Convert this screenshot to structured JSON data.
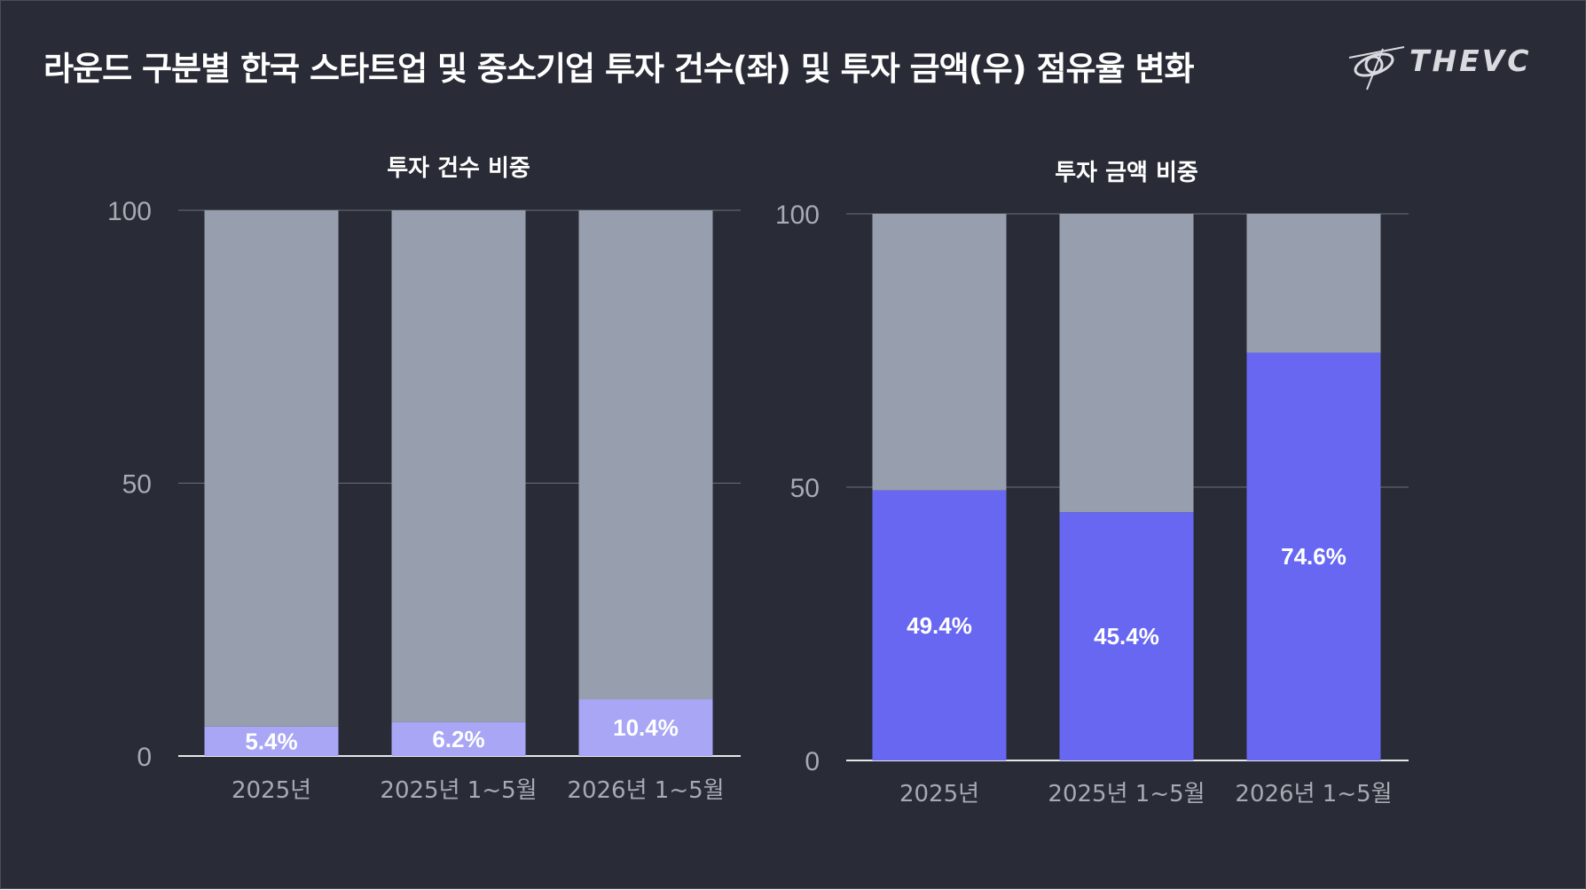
{
  "title": "라운드 구분별 한국 스타트업 및 중소기업 투자 건수(좌) 및 투자 금액(우) 점유율 변화",
  "logo": {
    "text": "THEVC",
    "icon": "thevc-orbit-logo-icon"
  },
  "colors": {
    "background": "#292c36",
    "bar_remainder": "#979eae",
    "bar_left_share": "#a8a6f5",
    "bar_right_share": "#6767f2",
    "axis_text": "#a7aab3",
    "grid": "#6c6f78"
  },
  "chart_data": [
    {
      "type": "bar",
      "stacked": true,
      "title": "투자 건수 비중",
      "categories": [
        "2025년",
        "2025년 1~5월",
        "2026년 1~5월"
      ],
      "series": [
        {
          "values": [
            5.4,
            6.2,
            10.4
          ],
          "labels": [
            "5.4%",
            "6.2%",
            "10.4%"
          ]
        },
        {
          "values": [
            94.6,
            93.8,
            89.6
          ]
        }
      ],
      "ylim": [
        0,
        100
      ],
      "yticks": [
        0,
        50,
        100
      ],
      "grid": true,
      "legend": "none"
    },
    {
      "type": "bar",
      "stacked": true,
      "title": "투자 금액 비중",
      "categories": [
        "2025년",
        "2025년 1~5월",
        "2026년 1~5월"
      ],
      "series": [
        {
          "values": [
            49.4,
            45.4,
            74.6
          ],
          "labels": [
            "49.4%",
            "45.4%",
            "74.6%"
          ]
        },
        {
          "values": [
            50.6,
            54.6,
            25.4
          ]
        }
      ],
      "ylim": [
        0,
        100
      ],
      "yticks": [
        0,
        50,
        100
      ],
      "grid": true,
      "legend": "none"
    }
  ]
}
